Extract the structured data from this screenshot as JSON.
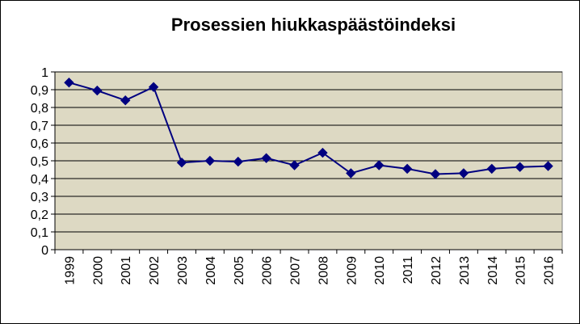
{
  "chart_data": {
    "type": "line",
    "title": "Prosessien hiukkaspäästöindeksi",
    "xlabel": "",
    "ylabel": "",
    "x": [
      "1999",
      "2000",
      "2001",
      "2002",
      "2003",
      "2004",
      "2005",
      "2006",
      "2007",
      "2008",
      "2009",
      "2010",
      "2011",
      "2012",
      "2013",
      "2014",
      "2015",
      "2016"
    ],
    "series": [
      {
        "values": [
          0.94,
          0.895,
          0.84,
          0.915,
          0.49,
          0.5,
          0.495,
          0.515,
          0.475,
          0.545,
          0.43,
          0.475,
          0.455,
          0.425,
          0.43,
          0.455,
          0.465,
          0.47
        ]
      }
    ],
    "ylim": [
      0,
      1
    ],
    "yticks": [
      "0",
      "0,1",
      "0,2",
      "0,3",
      "0,4",
      "0,5",
      "0,6",
      "0,7",
      "0,8",
      "0,9",
      "1"
    ],
    "grid": true,
    "legend": "none",
    "colors": {
      "plot_background": "#DDD9C3",
      "line": "#000080",
      "marker": "#000080"
    }
  }
}
